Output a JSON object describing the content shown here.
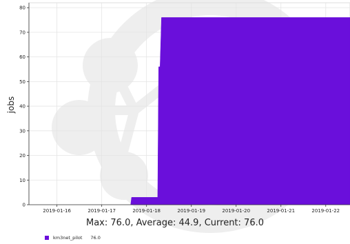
{
  "chart_data": {
    "type": "area",
    "title": "",
    "xlabel": "",
    "ylabel": "jobs",
    "ylim": [
      0,
      82
    ],
    "xlim": [
      "2019-01-15T09:00",
      "2019-01-22T13:00"
    ],
    "yticks": [
      0,
      10,
      20,
      30,
      40,
      50,
      60,
      70,
      80
    ],
    "xticks": [
      "2019-01-16",
      "2019-01-17",
      "2019-01-18",
      "2019-01-19",
      "2019-01-20",
      "2019-01-21",
      "2019-01-22"
    ],
    "grid": true,
    "legend_position": "bottom-left",
    "series": [
      {
        "name": "km3net_pilot",
        "color": "#6a0fdb",
        "points": [
          [
            "2019-01-17T15:30",
            0
          ],
          [
            "2019-01-17T16:00",
            3
          ],
          [
            "2019-01-18T06:00",
            3
          ],
          [
            "2019-01-18T06:30",
            56
          ],
          [
            "2019-01-18T07:15",
            56
          ],
          [
            "2019-01-18T08:00",
            76
          ],
          [
            "2019-01-22T13:00",
            76
          ]
        ]
      }
    ]
  },
  "summary_text": "Max: 76.0, Average: 44.9, Current: 76.0",
  "legend": [
    {
      "label": "km3net_pilot",
      "value": "76.0",
      "color": "#6a0fdb"
    }
  ]
}
